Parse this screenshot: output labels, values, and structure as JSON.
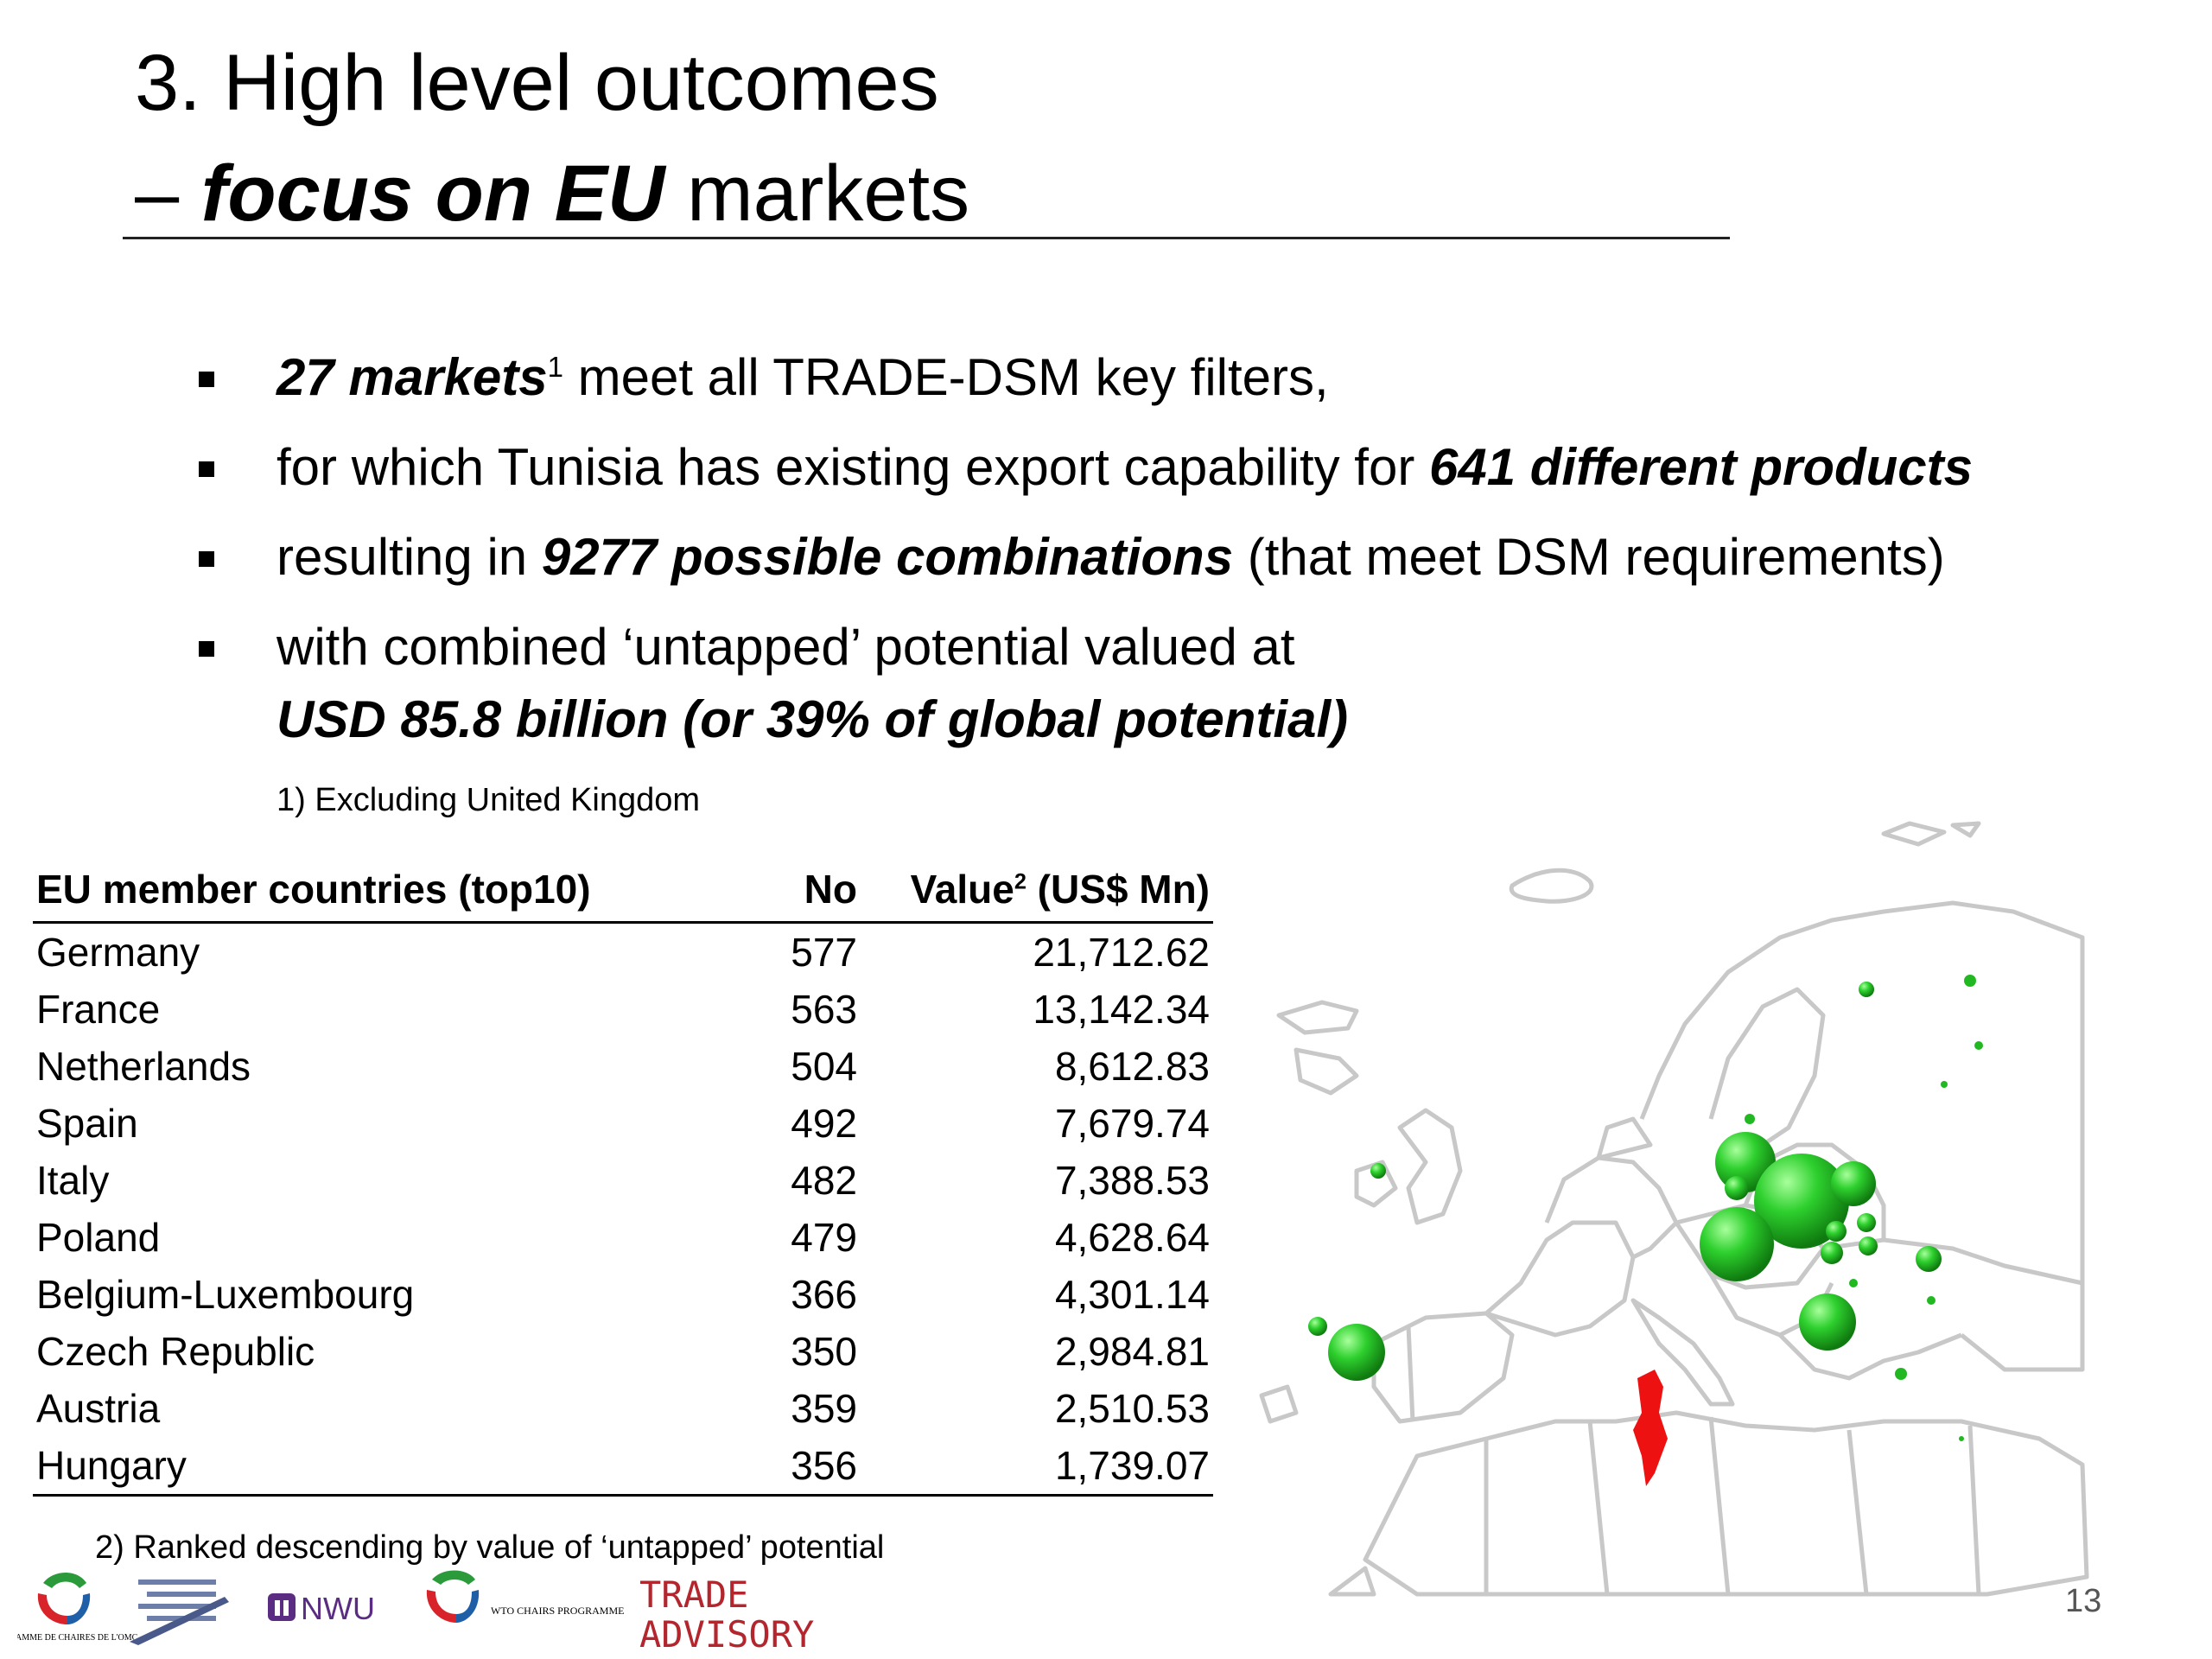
{
  "title": {
    "line1": "3. High level outcomes",
    "line2_dash": "– ",
    "line2_bold": "focus on EU",
    "line2_rest": " markets"
  },
  "bullets": [
    {
      "pre": "",
      "bold": "27 markets",
      "sup": "1",
      "post": " meet all TRADE-DSM key filters,"
    },
    {
      "pre": "for which Tunisia has existing export capability for ",
      "bold": "641 different products",
      "sup": "",
      "post": ""
    },
    {
      "pre": "resulting in ",
      "bold": "9277 possible combinations",
      "sup": "",
      "post": " (that meet DSM requirements)"
    },
    {
      "pre": "with combined ‘untapped’ potential valued at",
      "bold": "",
      "sup": "",
      "post": "",
      "cont": "USD 85.8 billion  (or 39% of global potential)"
    }
  ],
  "note1": "1) Excluding United Kingdom",
  "table": {
    "headers": {
      "country": "EU member countries (top10)",
      "no": "No",
      "value_pre": "Value",
      "value_sup": "2",
      "value_post": " (US$ Mn)"
    },
    "rows": [
      {
        "country": "Germany",
        "no": "577",
        "value": "21,712.62"
      },
      {
        "country": "France",
        "no": "563",
        "value": "13,142.34"
      },
      {
        "country": "Netherlands",
        "no": "504",
        "value": "8,612.83"
      },
      {
        "country": "Spain",
        "no": "492",
        "value": "7,679.74"
      },
      {
        "country": "Italy",
        "no": "482",
        "value": "7,388.53"
      },
      {
        "country": "Poland",
        "no": "479",
        "value": "4,628.64"
      },
      {
        "country": "Belgium-Luxembourg",
        "no": "366",
        "value": "4,301.14"
      },
      {
        "country": "Czech Republic",
        "no": "350",
        "value": "2,984.81"
      },
      {
        "country": "Austria",
        "no": "359",
        "value": "2,510.53"
      },
      {
        "country": "Hungary",
        "no": "356",
        "value": "1,739.07"
      }
    ]
  },
  "note2": "2) Ranked descending by value of ‘untapped’ potential",
  "page_number": "13",
  "map": {
    "bubble_color": "#22b822",
    "highlight_color": "#ee1111",
    "border_color": "#c8c8c8"
  },
  "logos": {
    "chairs": "PROGRAMME DE CHAIRES DE L'OMC",
    "nwu": "NWU",
    "wto_chairs": "WTO CHAIRS PROGRAMME",
    "trade": "TRADE",
    "advisory": "ADVISORY"
  }
}
